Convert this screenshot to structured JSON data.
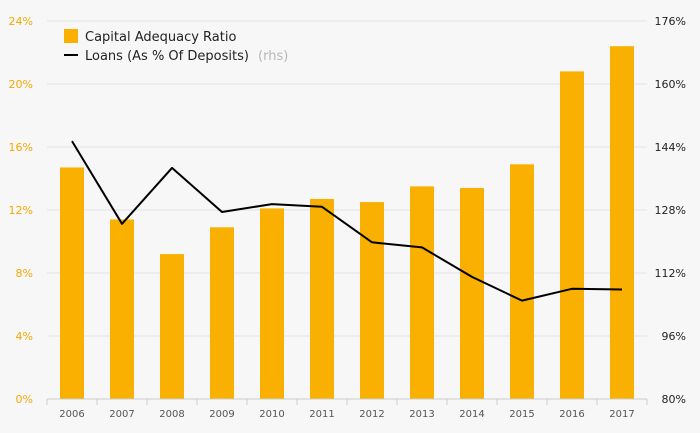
{
  "chart_data": {
    "type": "bar+line",
    "categories": [
      "2006",
      "2007",
      "2008",
      "2009",
      "2010",
      "2011",
      "2012",
      "2013",
      "2014",
      "2015",
      "2016",
      "2017"
    ],
    "series": [
      {
        "name": "Capital Adequacy Ratio",
        "type": "bar",
        "axis": "left",
        "color": "#f9b000",
        "values": [
          14.7,
          11.4,
          9.2,
          10.9,
          12.1,
          12.7,
          12.5,
          13.5,
          13.4,
          14.9,
          20.8,
          22.4
        ]
      },
      {
        "name": "Loans (As % Of Deposits)",
        "name_suffix": "(rhs)",
        "type": "line",
        "axis": "right",
        "color": "#000000",
        "values": [
          145.5,
          124.5,
          138.7,
          127.5,
          129.5,
          128.8,
          119.8,
          118.5,
          111.0,
          105.0,
          108.0,
          107.8
        ]
      }
    ],
    "y_left": {
      "ylim": [
        0,
        24
      ],
      "ticks": [
        0,
        4,
        8,
        12,
        16,
        20,
        24
      ],
      "tick_labels": [
        "0%",
        "4%",
        "8%",
        "12%",
        "16%",
        "20%",
        "24%"
      ],
      "color": "#f5a800"
    },
    "y_right": {
      "ylim": [
        80,
        176
      ],
      "ticks": [
        80,
        96,
        112,
        128,
        144,
        160,
        176
      ],
      "tick_labels": [
        "80%",
        "96%",
        "112%",
        "128%",
        "144%",
        "160%",
        "176%"
      ],
      "color": "#222222"
    },
    "grid": true,
    "legend": "top-left"
  }
}
